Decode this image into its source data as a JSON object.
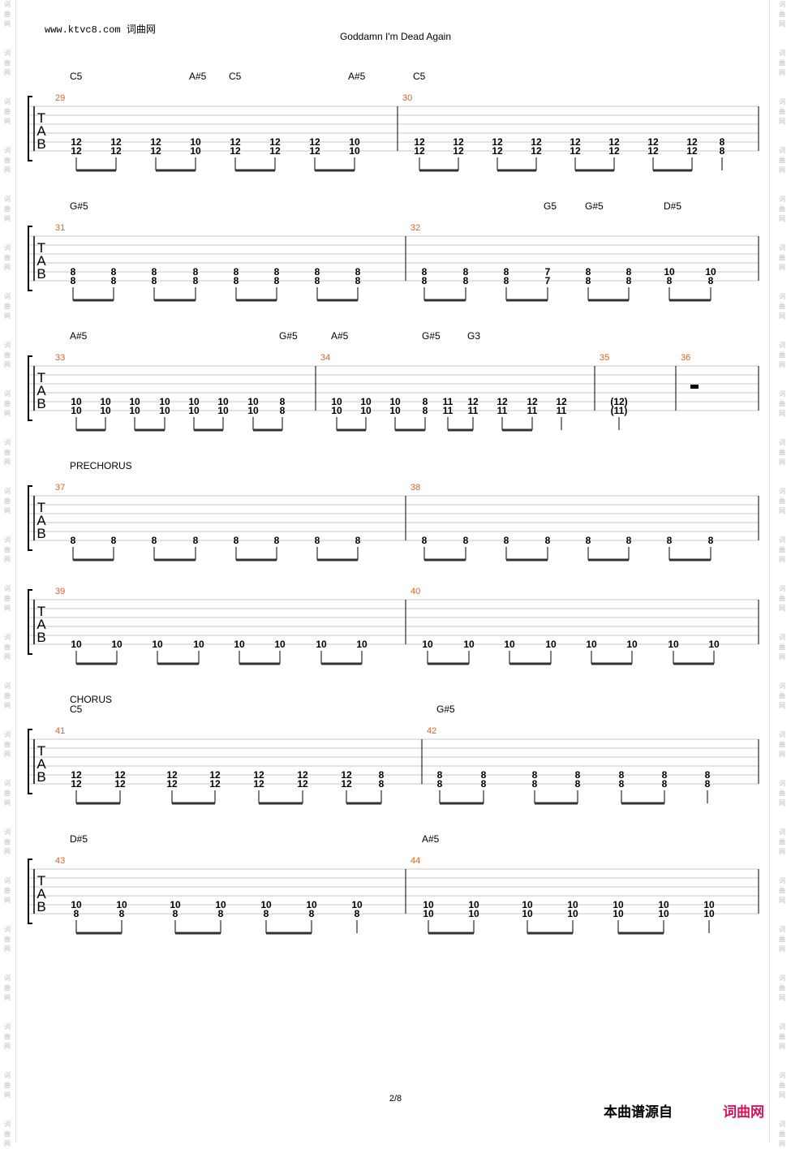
{
  "header": {
    "site": "www.ktvc8.com 词曲网",
    "title": "Goddamn I'm Dead Again"
  },
  "footer": {
    "page": "2/8",
    "source_label": "本曲谱源自",
    "brand": "词曲网"
  },
  "watermark": "词曲网",
  "colors": {
    "measure_number": "#e0611b",
    "brand": "#d4145a",
    "staff_line": "#c8c8c8"
  },
  "systems": [
    {
      "id": "sys1",
      "sections": [],
      "chords": [
        "C5",
        "A#5",
        "C5",
        "A#5",
        "C5"
      ],
      "measures": [
        {
          "number": "29",
          "notes": [
            [
              "12",
              "12"
            ],
            [
              "12",
              "12"
            ],
            [
              "12",
              "12"
            ],
            [
              "10",
              "10"
            ],
            [
              "12",
              "12"
            ],
            [
              "12",
              "12"
            ],
            [
              "12",
              "12"
            ],
            [
              "10",
              "10"
            ]
          ]
        },
        {
          "number": "30",
          "notes": [
            [
              "12",
              "12"
            ],
            [
              "12",
              "12"
            ],
            [
              "12",
              "12"
            ],
            [
              "12",
              "12"
            ],
            [
              "12",
              "12"
            ],
            [
              "12",
              "12"
            ],
            [
              "12",
              "12"
            ],
            [
              "12",
              "12"
            ],
            [
              "8",
              "8"
            ]
          ]
        }
      ]
    },
    {
      "id": "sys2",
      "sections": [],
      "chords": [
        "G#5",
        "G5",
        "G#5",
        "D#5"
      ],
      "measures": [
        {
          "number": "31",
          "notes": [
            [
              "8",
              "8"
            ],
            [
              "8",
              "8"
            ],
            [
              "8",
              "8"
            ],
            [
              "8",
              "8"
            ],
            [
              "8",
              "8"
            ],
            [
              "8",
              "8"
            ],
            [
              "8",
              "8"
            ],
            [
              "8",
              "8"
            ]
          ]
        },
        {
          "number": "32",
          "notes": [
            [
              "8",
              "8"
            ],
            [
              "8",
              "8"
            ],
            [
              "8",
              "8"
            ],
            [
              "7",
              "7"
            ],
            [
              "8",
              "8"
            ],
            [
              "8",
              "8"
            ],
            [
              "10",
              "8"
            ],
            [
              "10",
              "8"
            ]
          ]
        }
      ]
    },
    {
      "id": "sys3",
      "sections": [],
      "chords": [
        "A#5",
        "G#5",
        "A#5",
        "G#5",
        "G3"
      ],
      "measures": [
        {
          "number": "33",
          "notes": [
            [
              "10",
              "10"
            ],
            [
              "10",
              "10"
            ],
            [
              "10",
              "10"
            ],
            [
              "10",
              "10"
            ],
            [
              "10",
              "10"
            ],
            [
              "10",
              "10"
            ],
            [
              "10",
              "10"
            ],
            [
              "8",
              "8"
            ]
          ]
        },
        {
          "number": "34",
          "notes": [
            [
              "10",
              "10"
            ],
            [
              "10",
              "10"
            ],
            [
              "10",
              "10"
            ],
            [
              "8",
              "8"
            ],
            [
              "11",
              "11"
            ],
            [
              "12",
              "11"
            ],
            [
              "12",
              "11"
            ],
            [
              "12",
              "11"
            ],
            [
              "12",
              "11"
            ]
          ]
        },
        {
          "number": "35",
          "notes": [
            [
              "(12)",
              "(11)"
            ]
          ]
        },
        {
          "number": "36",
          "notes": []
        }
      ]
    },
    {
      "id": "sys4",
      "sections": [
        "PRECHORUS"
      ],
      "chords": [],
      "measures": [
        {
          "number": "37",
          "notes": [
            [
              "8"
            ],
            [
              "8"
            ],
            [
              "8"
            ],
            [
              "8"
            ],
            [
              "8"
            ],
            [
              "8"
            ],
            [
              "8"
            ],
            [
              "8"
            ]
          ]
        },
        {
          "number": "38",
          "notes": [
            [
              "8"
            ],
            [
              "8"
            ],
            [
              "8"
            ],
            [
              "8"
            ],
            [
              "8"
            ],
            [
              "8"
            ],
            [
              "8"
            ],
            [
              "8"
            ]
          ]
        }
      ]
    },
    {
      "id": "sys5",
      "sections": [],
      "chords": [],
      "measures": [
        {
          "number": "39",
          "notes": [
            [
              "10"
            ],
            [
              "10"
            ],
            [
              "10"
            ],
            [
              "10"
            ],
            [
              "10"
            ],
            [
              "10"
            ],
            [
              "10"
            ],
            [
              "10"
            ]
          ]
        },
        {
          "number": "40",
          "notes": [
            [
              "10"
            ],
            [
              "10"
            ],
            [
              "10"
            ],
            [
              "10"
            ],
            [
              "10"
            ],
            [
              "10"
            ],
            [
              "10"
            ],
            [
              "10"
            ]
          ]
        }
      ]
    },
    {
      "id": "sys6",
      "sections": [
        "CHORUS"
      ],
      "chords": [
        "C5",
        "G#5"
      ],
      "measures": [
        {
          "number": "41",
          "notes": [
            [
              "12",
              "12"
            ],
            [
              "12",
              "12"
            ],
            [
              "12",
              "12"
            ],
            [
              "12",
              "12"
            ],
            [
              "12",
              "12"
            ],
            [
              "12",
              "12"
            ],
            [
              "12",
              "12"
            ],
            [
              "8",
              "8"
            ]
          ]
        },
        {
          "number": "42",
          "notes": [
            [
              "8",
              "8"
            ],
            [
              "8",
              "8"
            ],
            [
              "8",
              "8"
            ],
            [
              "8",
              "8"
            ],
            [
              "8",
              "8"
            ],
            [
              "8",
              "8"
            ],
            [
              "8",
              "8"
            ]
          ]
        }
      ]
    },
    {
      "id": "sys7",
      "sections": [],
      "chords": [
        "D#5",
        "A#5"
      ],
      "measures": [
        {
          "number": "43",
          "notes": [
            [
              "10",
              "8"
            ],
            [
              "10",
              "8"
            ],
            [
              "10",
              "8"
            ],
            [
              "10",
              "8"
            ],
            [
              "10",
              "8"
            ],
            [
              "10",
              "8"
            ],
            [
              "10",
              "8"
            ]
          ]
        },
        {
          "number": "44",
          "notes": [
            [
              "10",
              "10"
            ],
            [
              "10",
              "10"
            ],
            [
              "10",
              "10"
            ],
            [
              "10",
              "10"
            ],
            [
              "10",
              "10"
            ],
            [
              "10",
              "10"
            ],
            [
              "10",
              "10"
            ]
          ]
        }
      ]
    }
  ]
}
